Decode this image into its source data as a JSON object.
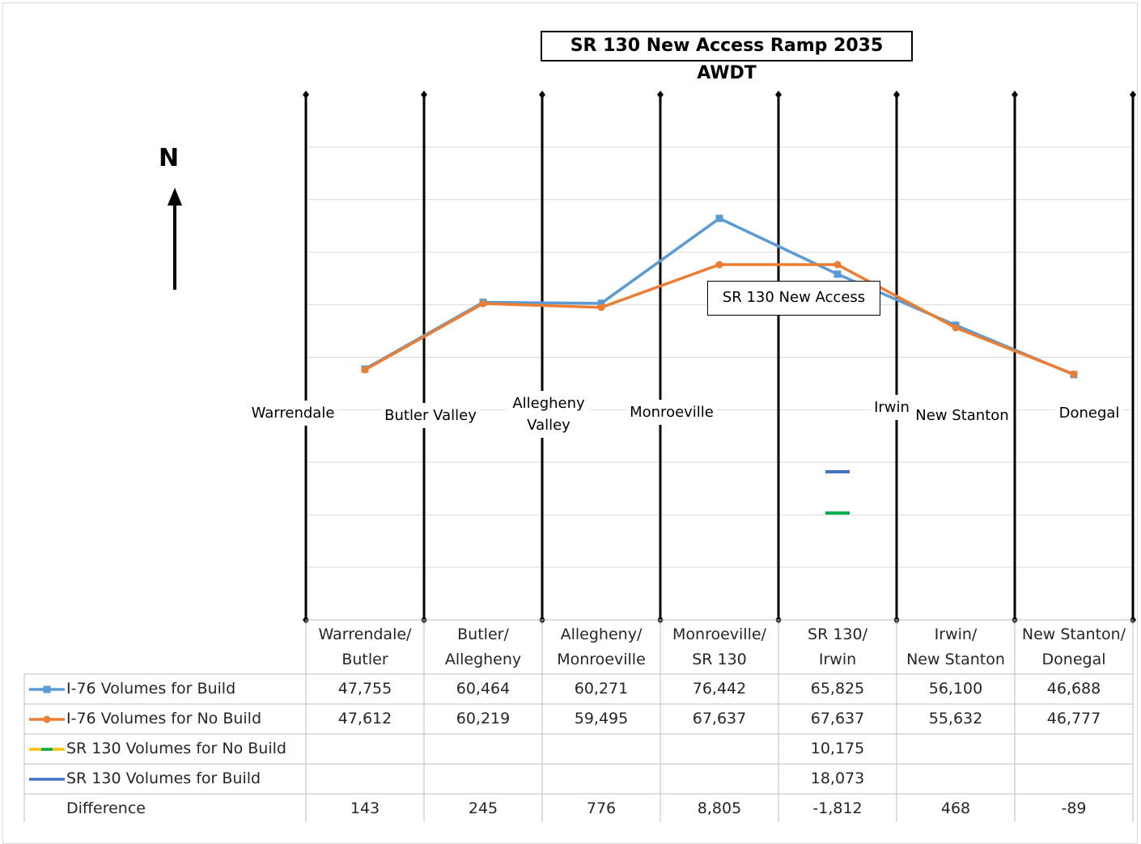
{
  "chart_data": {
    "type": "line",
    "title": "SR 130 New Access Ramp 2035 AWDT",
    "annotation": "SR 130 New Access",
    "north_label": "N",
    "categories": [
      [
        "Warrendale/",
        "Butler"
      ],
      [
        "Butler/",
        "Allegheny"
      ],
      [
        "Allegheny/",
        "Monroeville"
      ],
      [
        "Monroeville/",
        "SR 130"
      ],
      [
        "SR 130/",
        "Irwin"
      ],
      [
        "Irwin/",
        "New Stanton"
      ],
      [
        "New Stanton/",
        "Donegal"
      ]
    ],
    "interchanges": [
      "Warrendale",
      "Butler Valley",
      "Allegheny Valley",
      "Monroeville",
      "Irwin",
      "New Stanton",
      "Donegal"
    ],
    "ylim": [
      0,
      100000
    ],
    "series": [
      {
        "name": "I-76 Volumes for Build",
        "color": "#5b9bd5",
        "marker": "square",
        "values": [
          47755,
          60464,
          60271,
          76442,
          65825,
          56100,
          46688
        ],
        "labels": [
          "47,755",
          "60,464",
          "60,271",
          "76,442",
          "65,825",
          "56,100",
          "46,688"
        ]
      },
      {
        "name": "I-76 Volumes for No Build",
        "color": "#ed7d31",
        "marker": "circle",
        "values": [
          47612,
          60219,
          59495,
          67637,
          67637,
          55632,
          46777
        ],
        "labels": [
          "47,612",
          "60,219",
          "59,495",
          "67,637",
          "67,637",
          "55,632",
          "46,777"
        ]
      },
      {
        "name": "SR 130 Volumes  for No Build",
        "color": "#ffc000",
        "color2": "#00b050",
        "marker": "none",
        "values": [
          null,
          null,
          null,
          null,
          10175,
          null,
          null
        ],
        "labels": [
          "",
          "",
          "",
          "",
          "10,175",
          "",
          ""
        ]
      },
      {
        "name": "SR 130 Volumes for Build",
        "color": "#4472c4",
        "marker": "none",
        "values": [
          null,
          null,
          null,
          null,
          18073,
          null,
          null
        ],
        "labels": [
          "",
          "",
          "",
          "",
          "18,073",
          "",
          ""
        ]
      }
    ],
    "difference": {
      "name": "Difference",
      "labels": [
        "143",
        "245",
        "776",
        "8,805",
        "-1,812",
        "468",
        "-89"
      ]
    }
  }
}
